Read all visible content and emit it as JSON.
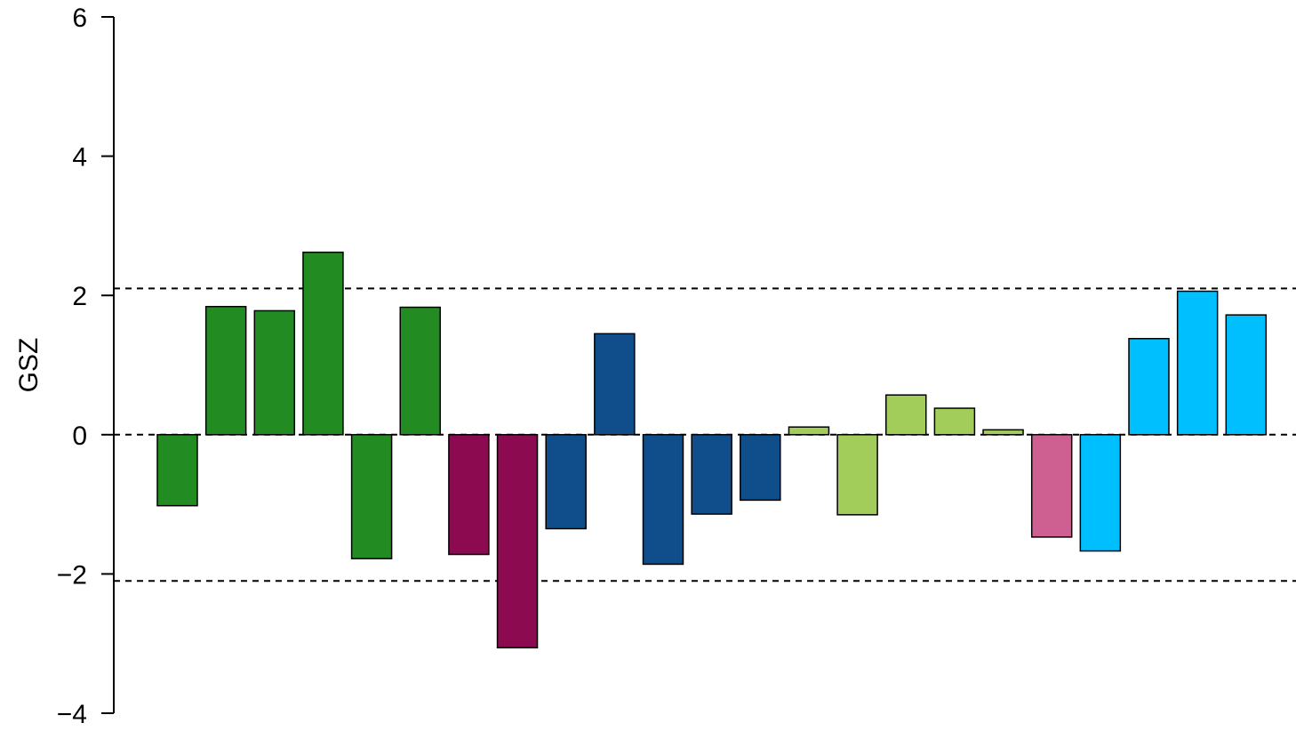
{
  "chart_data": {
    "type": "bar",
    "title": "",
    "xlabel": "",
    "ylabel": "GSZ",
    "ylim": [
      -4,
      6
    ],
    "yticks": [
      {
        "value": 6,
        "label": "6"
      },
      {
        "value": 4,
        "label": "4"
      },
      {
        "value": 2,
        "label": "2"
      },
      {
        "value": 0,
        "label": "0"
      },
      {
        "value": -2,
        "label": "−2"
      },
      {
        "value": -4,
        "label": "−4"
      }
    ],
    "reference_lines": [
      2.1,
      0,
      -2.1
    ],
    "grid": false,
    "legend": "none",
    "bar_outline_color": "#000000",
    "values": [
      -1.02,
      1.84,
      1.78,
      2.62,
      -1.78,
      1.83,
      -1.72,
      -3.06,
      -1.35,
      1.45,
      -1.86,
      -1.14,
      -0.94,
      0.11,
      -1.15,
      0.57,
      0.38,
      0.07,
      -1.47,
      -1.67,
      1.38,
      2.06,
      1.72
    ],
    "colors": [
      "#228B22",
      "#228B22",
      "#228B22",
      "#228B22",
      "#228B22",
      "#228B22",
      "#8B0A50",
      "#8B0A50",
      "#104E8B",
      "#104E8B",
      "#104E8B",
      "#104E8B",
      "#104E8B",
      "#A2CD5A",
      "#A2CD5A",
      "#A2CD5A",
      "#A2CD5A",
      "#A2CD5A",
      "#CD6090",
      "#00BFFF",
      "#00BFFF",
      "#00BFFF",
      "#00BFFF"
    ]
  }
}
